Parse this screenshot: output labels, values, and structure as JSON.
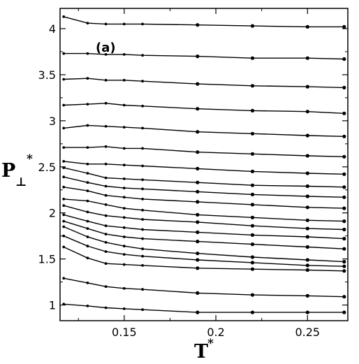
{
  "chart_data": {
    "type": "line",
    "panel_label": "(a)",
    "xlabel": {
      "main": "T",
      "sup": "*"
    },
    "ylabel": {
      "main": "P",
      "sub": "⊥",
      "sup": "*"
    },
    "xlim": [
      0.115,
      0.272
    ],
    "ylim": [
      0.83,
      4.22
    ],
    "xticks": [
      0.15,
      0.2,
      0.25
    ],
    "xtick_labels": [
      "0.15",
      "0.2",
      "0.25"
    ],
    "yticks": [
      1,
      1.5,
      2,
      2.5,
      3,
      3.5,
      4
    ],
    "ytick_labels": [
      "1",
      "1.5",
      "2",
      "2.5",
      "3",
      "3.5",
      "4"
    ],
    "x": [
      0.117,
      0.13,
      0.14,
      0.15,
      0.16,
      0.19,
      0.22,
      0.25,
      0.27
    ],
    "series": [
      {
        "values": [
          4.13,
          4.06,
          4.05,
          4.05,
          4.05,
          4.04,
          4.03,
          4.02,
          4.02
        ]
      },
      {
        "values": [
          3.73,
          3.73,
          3.72,
          3.72,
          3.71,
          3.7,
          3.68,
          3.68,
          3.67
        ]
      },
      {
        "values": [
          3.45,
          3.46,
          3.44,
          3.44,
          3.43,
          3.4,
          3.38,
          3.37,
          3.36
        ]
      },
      {
        "values": [
          3.17,
          3.18,
          3.19,
          3.17,
          3.16,
          3.13,
          3.11,
          3.1,
          3.08
        ]
      },
      {
        "values": [
          2.92,
          2.95,
          2.94,
          2.93,
          2.92,
          2.88,
          2.86,
          2.84,
          2.83
        ]
      },
      {
        "values": [
          2.71,
          2.71,
          2.72,
          2.7,
          2.7,
          2.66,
          2.64,
          2.62,
          2.61
        ]
      },
      {
        "values": [
          2.56,
          2.53,
          2.53,
          2.52,
          2.51,
          2.48,
          2.45,
          2.43,
          2.42
        ]
      },
      {
        "values": [
          2.49,
          2.43,
          2.38,
          2.37,
          2.36,
          2.33,
          2.3,
          2.29,
          2.28
        ]
      },
      {
        "values": [
          2.39,
          2.33,
          2.29,
          2.27,
          2.26,
          2.23,
          2.2,
          2.18,
          2.17
        ]
      },
      {
        "values": [
          2.28,
          2.24,
          2.19,
          2.17,
          2.15,
          2.12,
          2.09,
          2.06,
          2.05
        ]
      },
      {
        "values": [
          2.15,
          2.13,
          2.09,
          2.05,
          2.03,
          1.98,
          1.95,
          1.92,
          1.91
        ]
      },
      {
        "values": [
          2.08,
          2.01,
          1.97,
          1.95,
          1.93,
          1.9,
          1.86,
          1.83,
          1.82
        ]
      },
      {
        "values": [
          1.98,
          1.91,
          1.86,
          1.84,
          1.82,
          1.79,
          1.76,
          1.74,
          1.72
        ]
      },
      {
        "values": [
          1.91,
          1.83,
          1.77,
          1.74,
          1.72,
          1.69,
          1.66,
          1.63,
          1.61
        ]
      },
      {
        "values": [
          1.85,
          1.74,
          1.68,
          1.64,
          1.61,
          1.56,
          1.52,
          1.49,
          1.47
        ]
      },
      {
        "values": [
          1.75,
          1.64,
          1.58,
          1.55,
          1.53,
          1.49,
          1.46,
          1.43,
          1.42
        ]
      },
      {
        "values": [
          1.63,
          1.51,
          1.45,
          1.44,
          1.43,
          1.4,
          1.39,
          1.38,
          1.37
        ]
      },
      {
        "values": [
          1.29,
          1.24,
          1.2,
          1.18,
          1.17,
          1.13,
          1.11,
          1.1,
          1.09
        ]
      },
      {
        "values": [
          1.01,
          0.99,
          0.97,
          0.96,
          0.95,
          0.92,
          0.92,
          0.92,
          0.92
        ]
      }
    ],
    "grid": false,
    "legend": "none"
  }
}
